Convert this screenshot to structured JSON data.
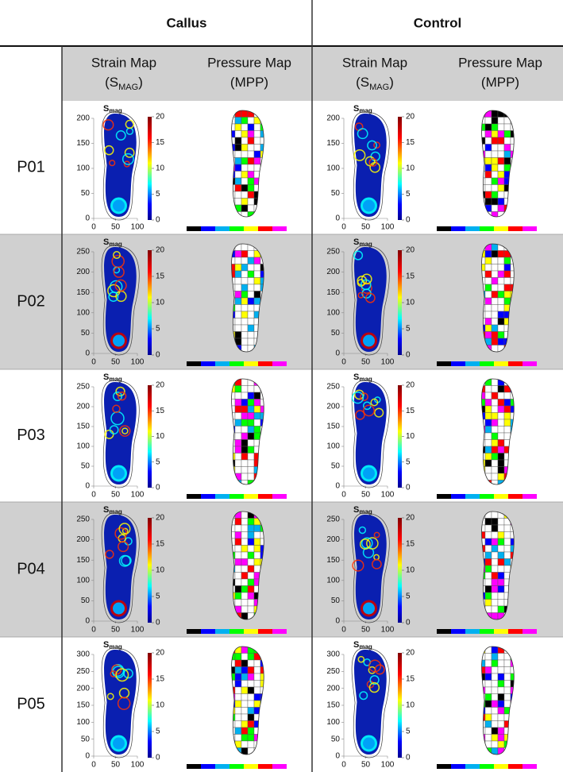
{
  "columns": [
    "Callus",
    "Control"
  ],
  "subcolumns": [
    {
      "title": "Strain Map",
      "symbol": [
        "(S",
        "MAG",
        ")"
      ]
    },
    {
      "title": "Pressure Map",
      "symbol": [
        "(MPP)"
      ]
    }
  ],
  "strain_plot": {
    "label": [
      "S",
      "mag"
    ],
    "xticks": [
      0,
      50,
      100
    ],
    "colorbar_ticks": [
      0,
      5,
      10,
      15,
      20
    ]
  },
  "rows": [
    {
      "label": "P01",
      "yticks": [
        0,
        50,
        100,
        150,
        200
      ]
    },
    {
      "label": "P02",
      "yticks": [
        0,
        50,
        100,
        150,
        200,
        250
      ]
    },
    {
      "label": "P03",
      "yticks": [
        0,
        50,
        100,
        150,
        200,
        250
      ]
    },
    {
      "label": "P04",
      "yticks": [
        0,
        50,
        100,
        150,
        200,
        250
      ]
    },
    {
      "label": "P05",
      "yticks": [
        0,
        50,
        100,
        150,
        200,
        250,
        300
      ]
    }
  ]
}
